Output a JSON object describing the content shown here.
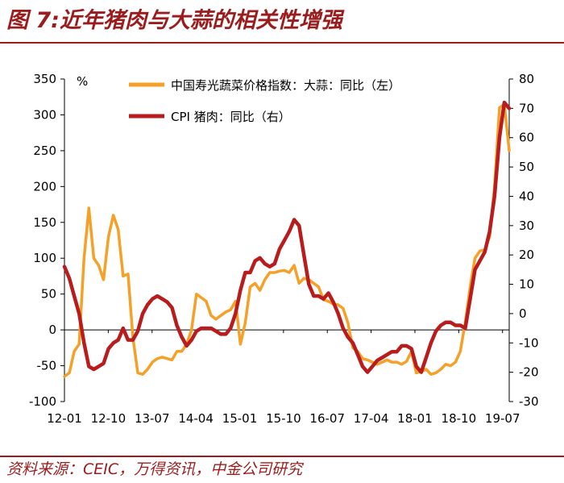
{
  "title": "图 7:近年猪肉与大蒜的相关性增强",
  "source": "资料来源：CEIC，万得资讯，中金公司研究",
  "colors": {
    "brand": "#9b1c1c",
    "garlic": "#f5a028",
    "pork": "#b81c1c",
    "axis": "#000000"
  },
  "chart_data": {
    "type": "line",
    "title": "",
    "left_unit_label": "%",
    "x_tick_labels": [
      "12-01",
      "12-10",
      "13-07",
      "14-04",
      "15-01",
      "15-10",
      "16-07",
      "17-04",
      "18-01",
      "18-10",
      "19-07"
    ],
    "x_range": [
      0,
      91
    ],
    "left_axis": {
      "min": -100,
      "max": 350,
      "step": 50,
      "ticks": [
        350,
        300,
        250,
        200,
        150,
        100,
        50,
        0,
        -50,
        -100
      ]
    },
    "right_axis": {
      "min": -30,
      "max": 80,
      "step": 10,
      "ticks": [
        80,
        70,
        60,
        50,
        40,
        30,
        20,
        10,
        0,
        -10,
        -20,
        -30
      ]
    },
    "legend_position": "top",
    "series": [
      {
        "name": "中国寿光蔬菜价格指数：大蒜：同比（左）",
        "axis": "left",
        "color": "#f5a028",
        "x": [
          0,
          1,
          2,
          3,
          4,
          5,
          6,
          7,
          8,
          9,
          10,
          11,
          12,
          13,
          14,
          15,
          16,
          17,
          18,
          19,
          20,
          21,
          22,
          23,
          24,
          25,
          26,
          27,
          28,
          29,
          30,
          31,
          32,
          33,
          34,
          35,
          36,
          37,
          38,
          39,
          40,
          41,
          42,
          43,
          44,
          45,
          46,
          47,
          48,
          49,
          50,
          51,
          52,
          53,
          54,
          55,
          56,
          57,
          58,
          59,
          60,
          61,
          62,
          63,
          64,
          65,
          66,
          67,
          68,
          69,
          70,
          71,
          72,
          73,
          74,
          75,
          76,
          77,
          78,
          79,
          80,
          81,
          82,
          83,
          84,
          85,
          86,
          87,
          88,
          89,
          90,
          91
        ],
        "values": [
          -65,
          -60,
          -30,
          -20,
          100,
          170,
          100,
          90,
          70,
          130,
          160,
          140,
          75,
          78,
          -10,
          -60,
          -62,
          -55,
          -45,
          -40,
          -38,
          -40,
          -42,
          -30,
          -30,
          -20,
          0,
          50,
          45,
          40,
          20,
          15,
          20,
          25,
          28,
          40,
          -20,
          10,
          60,
          65,
          55,
          70,
          80,
          80,
          82,
          83,
          80,
          90,
          65,
          72,
          70,
          65,
          60,
          42,
          40,
          36,
          35,
          30,
          10,
          -25,
          -30,
          -40,
          -42,
          -45,
          -48,
          -45,
          -42,
          -45,
          -45,
          -48,
          -44,
          -30,
          -60,
          -58,
          -55,
          -62,
          -60,
          -55,
          -48,
          -50,
          -45,
          -30,
          10,
          60,
          100,
          110,
          112,
          130,
          200,
          310,
          315,
          250
        ]
      },
      {
        "name": "CPI 猪肉：同比（右）",
        "axis": "right",
        "color": "#b81c1c",
        "x": [
          0,
          1,
          2,
          3,
          4,
          5,
          6,
          7,
          8,
          9,
          10,
          11,
          12,
          13,
          14,
          15,
          16,
          17,
          18,
          19,
          20,
          21,
          22,
          23,
          24,
          25,
          26,
          27,
          28,
          29,
          30,
          31,
          32,
          33,
          34,
          35,
          36,
          37,
          38,
          39,
          40,
          41,
          42,
          43,
          44,
          45,
          46,
          47,
          48,
          49,
          50,
          51,
          52,
          53,
          54,
          55,
          56,
          57,
          58,
          59,
          60,
          61,
          62,
          63,
          64,
          65,
          66,
          67,
          68,
          69,
          70,
          71,
          72,
          73,
          74,
          75,
          76,
          77,
          78,
          79,
          80,
          81,
          82,
          83,
          84,
          85,
          86,
          87,
          88,
          89,
          90,
          91
        ],
        "values": [
          16,
          12,
          6,
          0,
          -10,
          -18,
          -19,
          -18,
          -17,
          -12,
          -10,
          -9,
          -5,
          -9,
          -9,
          -6,
          0,
          3,
          5,
          6,
          5,
          4,
          2,
          -4,
          -8,
          -11,
          -9,
          -6,
          -5,
          -5,
          -5,
          -6,
          -7,
          -7,
          -5,
          0,
          8,
          14,
          14,
          18,
          19,
          17,
          16,
          17,
          22,
          25,
          28,
          32,
          30,
          20,
          10,
          6,
          6,
          5,
          7,
          4,
          0,
          -5,
          -8,
          -10,
          -14,
          -18,
          -20,
          -18,
          -16,
          -15,
          -14,
          -13,
          -13,
          -11,
          -11,
          -12,
          -18,
          -20,
          -15,
          -10,
          -6,
          -4,
          -3,
          -3,
          -4,
          -4,
          -5,
          5,
          15,
          18,
          21,
          28,
          40,
          60,
          72,
          70
        ]
      }
    ]
  }
}
